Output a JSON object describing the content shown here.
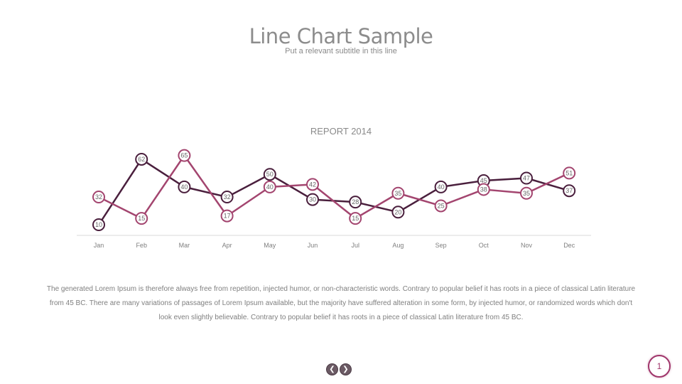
{
  "header": {
    "title": "Line Chart Sample",
    "subtitle": "Put a relevant subtitle in this line"
  },
  "chart_data": {
    "type": "line",
    "title": "REPORT 2014",
    "categories": [
      "Jan",
      "Feb",
      "Mar",
      "Apr",
      "May",
      "Jun",
      "Jul",
      "Aug",
      "Sep",
      "Oct",
      "Nov",
      "Dec"
    ],
    "series": [
      {
        "values": [
          10,
          62,
          40,
          32,
          50,
          30,
          28,
          20,
          40,
          45,
          47,
          37
        ],
        "color": "#4a1f3d"
      },
      {
        "values": [
          32,
          15,
          65,
          17,
          40,
          42,
          15,
          35,
          25,
          38,
          35,
          51
        ],
        "color": "#a3456f"
      }
    ],
    "ylim": [
      0,
      70
    ],
    "grid": false,
    "legend": "none",
    "data_labels": true
  },
  "body": {
    "text": "The generated Lorem Ipsum is therefore always free from repetition, injected humor, or non-characteristic words. Contrary to popular belief it has roots in a piece of classical Latin literature from 45 BC. There are many variations of passages of Lorem Ipsum available, but the majority have suffered alteration in some form, by injected humor, or randomized words which don't look even slightly believable. Contrary to popular belief it has roots in a piece of classical Latin literature from 45 BC."
  },
  "footer": {
    "page_number": "1",
    "prev_icon": "chevron-left-icon",
    "next_icon": "chevron-right-icon"
  }
}
